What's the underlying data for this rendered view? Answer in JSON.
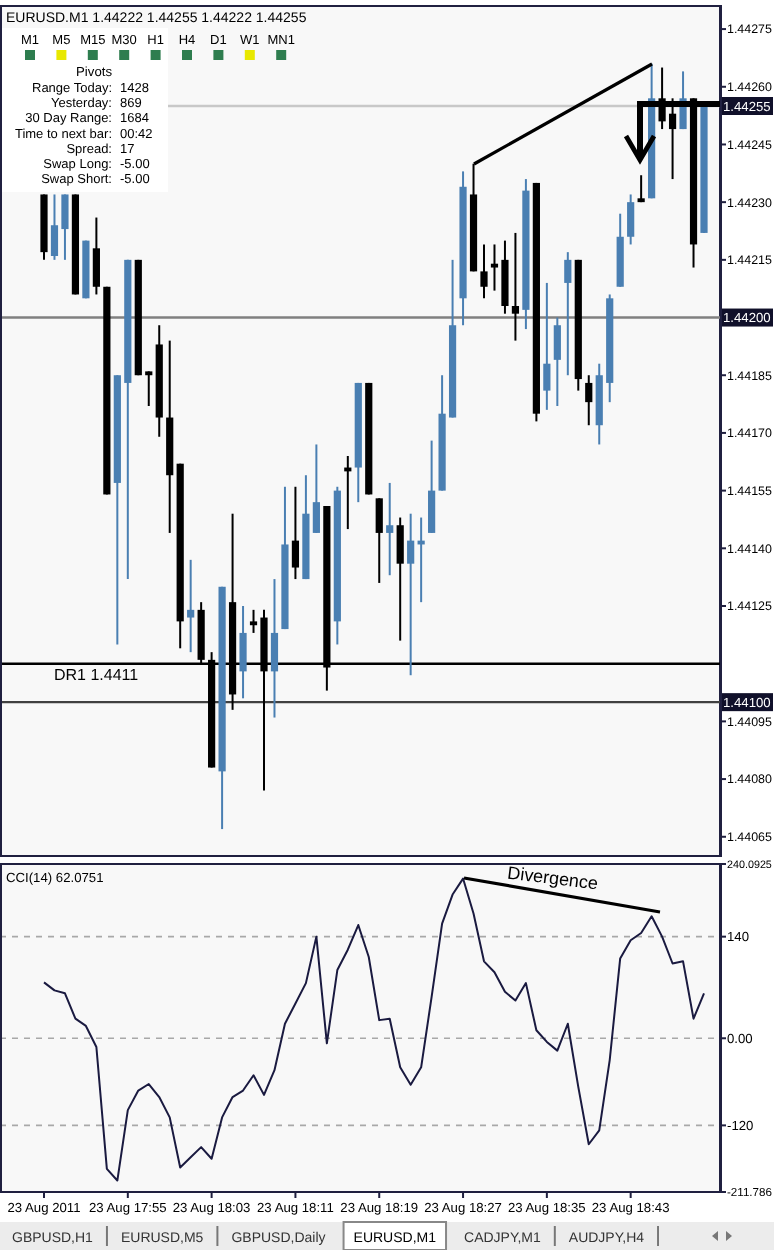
{
  "chart_data": [
    {
      "type": "candlestick",
      "title": "EURUSD.M1 1.44222 1.44255 1.44222 1.44255",
      "categories": [
        null,
        null,
        null,
        null,
        null,
        null,
        null,
        null,
        null,
        null,
        null,
        null,
        null,
        null,
        null,
        null,
        null,
        null,
        null,
        null,
        null,
        null,
        null,
        null,
        null,
        null,
        null,
        null,
        null,
        null,
        null,
        null,
        null,
        null,
        null,
        null,
        null,
        null,
        null,
        null,
        null,
        null,
        null,
        null,
        null,
        null,
        null,
        null,
        null,
        null,
        null,
        null,
        null,
        null,
        null,
        null,
        null,
        null,
        null,
        null,
        null,
        null,
        null,
        null
      ],
      "ohlc": [
        [
          1.44232,
          1.44232,
          1.44215,
          1.44217
        ],
        [
          1.44216,
          1.44232,
          1.44215,
          1.44224
        ],
        [
          1.44223,
          1.44232,
          1.44215,
          1.44232
        ],
        [
          1.44232,
          1.44232,
          1.44206,
          1.44206
        ],
        [
          1.44205,
          1.4422,
          1.44205,
          1.4422
        ],
        [
          1.44218,
          1.44226,
          1.44206,
          1.44208
        ],
        [
          1.44208,
          1.44208,
          1.44154,
          1.44154
        ],
        [
          1.44157,
          1.44185,
          1.44115,
          1.44185
        ],
        [
          1.44183,
          1.44215,
          1.44132,
          1.44215
        ],
        [
          1.44215,
          1.44215,
          1.44185,
          1.44185
        ],
        [
          1.44186,
          1.44186,
          1.44177,
          1.44185
        ],
        [
          1.44193,
          1.44198,
          1.44169,
          1.44174
        ],
        [
          1.44174,
          1.44194,
          1.44144,
          1.44159
        ],
        [
          1.44162,
          1.44162,
          1.44114,
          1.44121
        ],
        [
          1.44122,
          1.44137,
          1.44113,
          1.44124
        ],
        [
          1.44124,
          1.44126,
          1.4411,
          1.44111
        ],
        [
          1.44111,
          1.44113,
          1.44083,
          1.44083
        ],
        [
          1.44082,
          1.4413,
          1.44067,
          1.4413
        ],
        [
          1.44126,
          1.44149,
          1.44098,
          1.44102
        ],
        [
          1.44108,
          1.44125,
          1.44101,
          1.44118
        ],
        [
          1.44121,
          1.44124,
          1.44118,
          1.4412
        ],
        [
          1.44122,
          1.44124,
          1.44077,
          1.44108
        ],
        [
          1.44108,
          1.44132,
          1.44096,
          1.44118
        ],
        [
          1.44119,
          1.44156,
          1.44119,
          1.44141
        ],
        [
          1.44142,
          1.44156,
          1.44132,
          1.44135
        ],
        [
          1.44132,
          1.44159,
          1.44132,
          1.44149
        ],
        [
          1.44144,
          1.44167,
          1.44144,
          1.44152
        ],
        [
          1.44151,
          1.44151,
          1.44103,
          1.44109
        ],
        [
          1.44121,
          1.44156,
          1.44115,
          1.44155
        ],
        [
          1.44161,
          1.44164,
          1.44145,
          1.4416
        ],
        [
          1.44161,
          1.44183,
          1.44152,
          1.44183
        ],
        [
          1.44183,
          1.44183,
          1.44154,
          1.44154
        ],
        [
          1.44153,
          1.44153,
          1.44131,
          1.44144
        ],
        [
          1.44144,
          1.44157,
          1.44133,
          1.44146
        ],
        [
          1.44146,
          1.44148,
          1.44116,
          1.44136
        ],
        [
          1.44136,
          1.44149,
          1.44107,
          1.44142
        ],
        [
          1.44141,
          1.44148,
          1.44126,
          1.44142
        ],
        [
          1.44144,
          1.44168,
          1.44144,
          1.44155
        ],
        [
          1.44155,
          1.44185,
          1.44155,
          1.44175
        ],
        [
          1.44174,
          1.44215,
          1.44174,
          1.44198
        ],
        [
          1.44205,
          1.44238,
          1.44198,
          1.44234
        ],
        [
          1.44232,
          1.4424,
          1.44212,
          1.44212
        ],
        [
          1.44212,
          1.44219,
          1.44205,
          1.44208
        ],
        [
          1.44214,
          1.44219,
          1.44207,
          1.44213
        ],
        [
          1.44215,
          1.4422,
          1.44201,
          1.44203
        ],
        [
          1.44203,
          1.44222,
          1.44194,
          1.44201
        ],
        [
          1.44202,
          1.44236,
          1.44197,
          1.44233
        ],
        [
          1.44235,
          1.44235,
          1.44173,
          1.44175
        ],
        [
          1.44181,
          1.44209,
          1.44176,
          1.44188
        ],
        [
          1.44189,
          1.442,
          1.44177,
          1.44198
        ],
        [
          1.44209,
          1.44217,
          1.44185,
          1.44215
        ],
        [
          1.44215,
          1.44215,
          1.44181,
          1.44184
        ],
        [
          1.44183,
          1.44185,
          1.44172,
          1.44178
        ],
        [
          1.44172,
          1.44188,
          1.44167,
          1.44185
        ],
        [
          1.44183,
          1.44206,
          1.44178,
          1.44205
        ],
        [
          1.44208,
          1.44227,
          1.44208,
          1.44221
        ],
        [
          1.44221,
          1.44232,
          1.44219,
          1.4423
        ],
        [
          1.44231,
          1.44237,
          1.4423,
          1.4423
        ],
        [
          1.44231,
          1.44266,
          1.44231,
          1.44257
        ],
        [
          1.44257,
          1.44265,
          1.44249,
          1.44251
        ],
        [
          1.44253,
          1.44257,
          1.44236,
          1.44249
        ],
        [
          1.44249,
          1.44264,
          1.44249,
          1.44257
        ],
        [
          1.44257,
          1.44257,
          1.44213,
          1.44219
        ],
        [
          1.44222,
          1.44255,
          1.44222,
          1.44255
        ]
      ],
      "colors": [
        "#000000",
        "#4a7fb2",
        "#4a7fb2",
        "#000000",
        "#4a7fb2",
        "#000000",
        "#000000",
        "#4a7fb2",
        "#4a7fb2",
        "#000000",
        "#000000",
        "#000000",
        "#000000",
        "#000000",
        "#4a7fb2",
        "#000000",
        "#000000",
        "#4a7fb2",
        "#000000",
        "#4a7fb2",
        "#000000",
        "#000000",
        "#4a7fb2",
        "#4a7fb2",
        "#000000",
        "#4a7fb2",
        "#4a7fb2",
        "#000000",
        "#4a7fb2",
        "#000000",
        "#4a7fb2",
        "#000000",
        "#000000",
        "#4a7fb2",
        "#000000",
        "#4a7fb2",
        "#4a7fb2",
        "#4a7fb2",
        "#4a7fb2",
        "#4a7fb2",
        "#4a7fb2",
        "#000000",
        "#000000",
        "#000000",
        "#000000",
        "#000000",
        "#4a7fb2",
        "#000000",
        "#4a7fb2",
        "#4a7fb2",
        "#4a7fb2",
        "#000000",
        "#000000",
        "#4a7fb2",
        "#4a7fb2",
        "#4a7fb2",
        "#4a7fb2",
        "#000000",
        "#4a7fb2",
        "#000000",
        "#000000",
        "#4a7fb2",
        "#000000",
        "#4a7fb2"
      ],
      "ylim": [
        1.4406,
        1.44281
      ],
      "yticks": [
        1.44275,
        {
          "value": 1.4426,
          "label": "1.44260"
        },
        1.44245,
        {
          "value": 1.4423,
          "label": "1.44230"
        },
        1.44215,
        1.44185,
        {
          "value": 1.4417,
          "label": "1.44170"
        },
        1.44155,
        {
          "value": 1.4414,
          "label": "1.44140"
        },
        1.44125,
        1.44095,
        {
          "value": 1.4408,
          "label": "1.44080"
        },
        1.44065
      ],
      "tick_labels": "y",
      "ref_lines": [
        {
          "axis": "y",
          "value": 1.44255,
          "label": "1.44255",
          "color": "#c8c8c8"
        },
        {
          "axis": "y",
          "value": 1.442,
          "label": "1.44200",
          "color": "#808080"
        },
        {
          "axis": "y",
          "value": 1.4411,
          "label": "DR1 1.4411",
          "color": "#000000"
        },
        {
          "axis": "y",
          "value": 1.441,
          "label": "1.44100",
          "color": "#404040"
        }
      ],
      "annotations": [
        "M1",
        "M5",
        "M15",
        "M30",
        "H1",
        "H4",
        "D1",
        "W1",
        "MN1",
        "Pivots",
        "Range Today:",
        "1428",
        "Yesterday:",
        "869",
        "30 Day Range:",
        "1684",
        "Time to next bar:",
        "00:42",
        "Spread:",
        "17",
        "Swap  Long:",
        "-5.00",
        "Swap  Short:",
        "-5.00"
      ]
    },
    {
      "type": "line",
      "title": "CCI(14) 62.0751",
      "categories": [
        "23 Aug 2011",
        null,
        null,
        null,
        null,
        null,
        null,
        null,
        "23 Aug 17:55",
        null,
        null,
        null,
        null,
        null,
        null,
        null,
        "23 Aug 18:03",
        null,
        null,
        null,
        null,
        null,
        null,
        null,
        "23 Aug 18:11",
        null,
        null,
        null,
        null,
        null,
        null,
        null,
        "23 Aug 18:19",
        null,
        null,
        null,
        null,
        null,
        null,
        null,
        "23 Aug 18:27",
        null,
        null,
        null,
        null,
        null,
        null,
        null,
        "23 Aug 18:35",
        null,
        null,
        null,
        null,
        null,
        null,
        null,
        "23 Aug 18:43",
        null,
        null,
        null,
        null,
        null,
        null,
        null
      ],
      "series": [
        {
          "color": "#1a1a40",
          "values": [
            77,
            66,
            62,
            27,
            17,
            -12,
            -180,
            -196,
            -99,
            -72,
            -63,
            -81,
            -109,
            -178,
            -164,
            -150,
            -166,
            -109,
            -81,
            -72,
            -51,
            -78,
            -44,
            20,
            48,
            76,
            140,
            -7,
            94,
            122,
            156,
            112,
            25,
            27,
            -40,
            -64,
            -40,
            57,
            158,
            198,
            220,
            172,
            106,
            91,
            64,
            52,
            76,
            11,
            -5,
            -17,
            20,
            -67,
            -146,
            -127,
            -30,
            110,
            135,
            145,
            168,
            140,
            103,
            106,
            27,
            62
          ]
        }
      ],
      "ylim": [
        -211.786,
        240.0925
      ],
      "yticks": [
        240.0925,
        140,
        {
          "value": 0,
          "label": "0.00"
        },
        -120,
        -211.786
      ],
      "grid": "y",
      "annotations": [
        "Divergence"
      ]
    },
    {
      "type": "other",
      "annotations": [
        "GBPUSD,H1",
        "EURUSD,M5",
        "GBPUSD,Daily",
        "EURUSD,M1",
        "CADJPY,M1",
        "AUDJPY,H4"
      ]
    }
  ]
}
